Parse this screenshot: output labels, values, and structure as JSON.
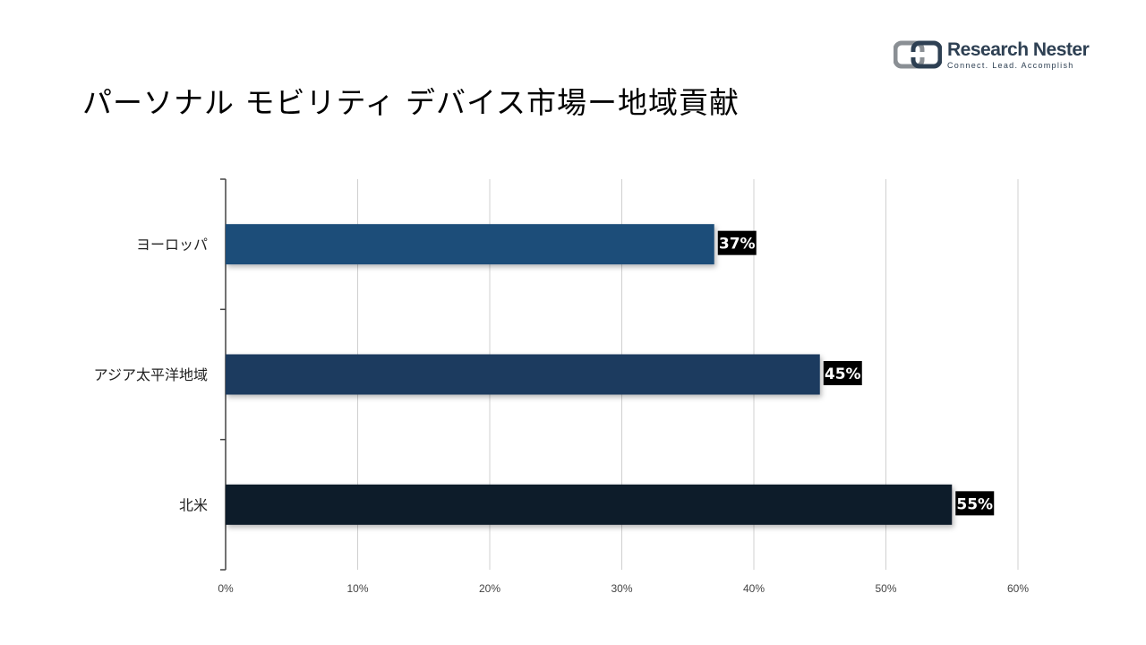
{
  "page": {
    "title": "パーソナル モビリティ デバイス市場ー地域貢献"
  },
  "logo": {
    "name": "Research Nester",
    "tagline": "Connect. Lead. Accomplish",
    "color": "#2e4053",
    "icon": "research-nester-logo-icon"
  },
  "chart_data": {
    "type": "bar",
    "orientation": "horizontal",
    "title": "パーソナル モビリティ デバイス市場ー地域貢献",
    "categories": [
      "ヨーロッパ",
      "アジア太平洋地域",
      "北米"
    ],
    "values": [
      37,
      45,
      55
    ],
    "data_labels": [
      "37%",
      "45%",
      "55%"
    ],
    "colors": [
      "#1f4e79",
      "#1c3a5e",
      "#0f1d2b"
    ],
    "xlim": [
      0,
      60
    ],
    "xticks": [
      "0%",
      "10%",
      "20%",
      "30%",
      "40%",
      "50%",
      "60%"
    ],
    "grid": true,
    "legend": "none",
    "xlabel": "",
    "ylabel": ""
  }
}
